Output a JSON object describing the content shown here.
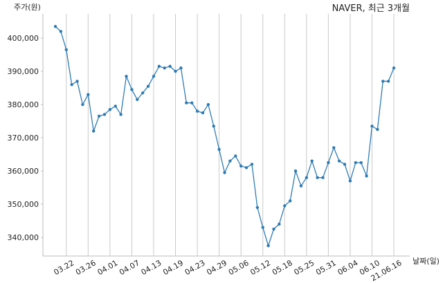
{
  "chart_data": {
    "type": "line",
    "title": "NAVER, 최근 3개월",
    "y_label": "주가(원)",
    "x_label": "날짜(일)",
    "categories": [
      null,
      null,
      "03.22",
      null,
      null,
      null,
      "03.26",
      null,
      null,
      null,
      "04.01",
      null,
      null,
      null,
      "04.07",
      null,
      null,
      null,
      "04.13",
      null,
      null,
      null,
      "04.19",
      null,
      null,
      null,
      "04.23",
      null,
      null,
      null,
      "04.29",
      null,
      null,
      null,
      "05.06",
      null,
      null,
      null,
      "05.12",
      null,
      null,
      null,
      "05.18",
      null,
      null,
      null,
      "05.25",
      null,
      null,
      null,
      "05.31",
      null,
      null,
      null,
      "06.04",
      null,
      null,
      null,
      "06.10",
      null,
      null,
      null,
      "21.06.16"
    ],
    "series": [
      {
        "name": "NAVER",
        "color": "#2e7bb4",
        "values": [
          403500,
          402000,
          396500,
          386000,
          387000,
          380000,
          383000,
          372000,
          376500,
          377000,
          378500,
          379500,
          377000,
          388500,
          384500,
          381500,
          383500,
          385500,
          388500,
          391500,
          391000,
          391500,
          390000,
          391000,
          380500,
          380500,
          378000,
          377500,
          380000,
          373500,
          366500,
          359500,
          363000,
          364500,
          361500,
          361000,
          362000,
          349000,
          343000,
          337500,
          342500,
          344000,
          349500,
          351000,
          360000,
          355500,
          358000,
          363000,
          358000,
          358000,
          362500,
          367000,
          363000,
          362000,
          357000,
          362500,
          362500,
          358500,
          373500,
          372500,
          387000,
          387000,
          391000
        ]
      }
    ],
    "ylim": [
      334400,
      407300
    ],
    "yticks": [
      {
        "value": 340000,
        "label": "340,000"
      },
      {
        "value": 350000,
        "label": "350,000"
      },
      {
        "value": 360000,
        "label": "360,000"
      },
      {
        "value": 370000,
        "label": "370,000"
      },
      {
        "value": 380000,
        "label": "380,000"
      },
      {
        "value": 390000,
        "label": "390,000"
      },
      {
        "value": 400000,
        "label": "400,000"
      }
    ],
    "x_grid": true
  }
}
